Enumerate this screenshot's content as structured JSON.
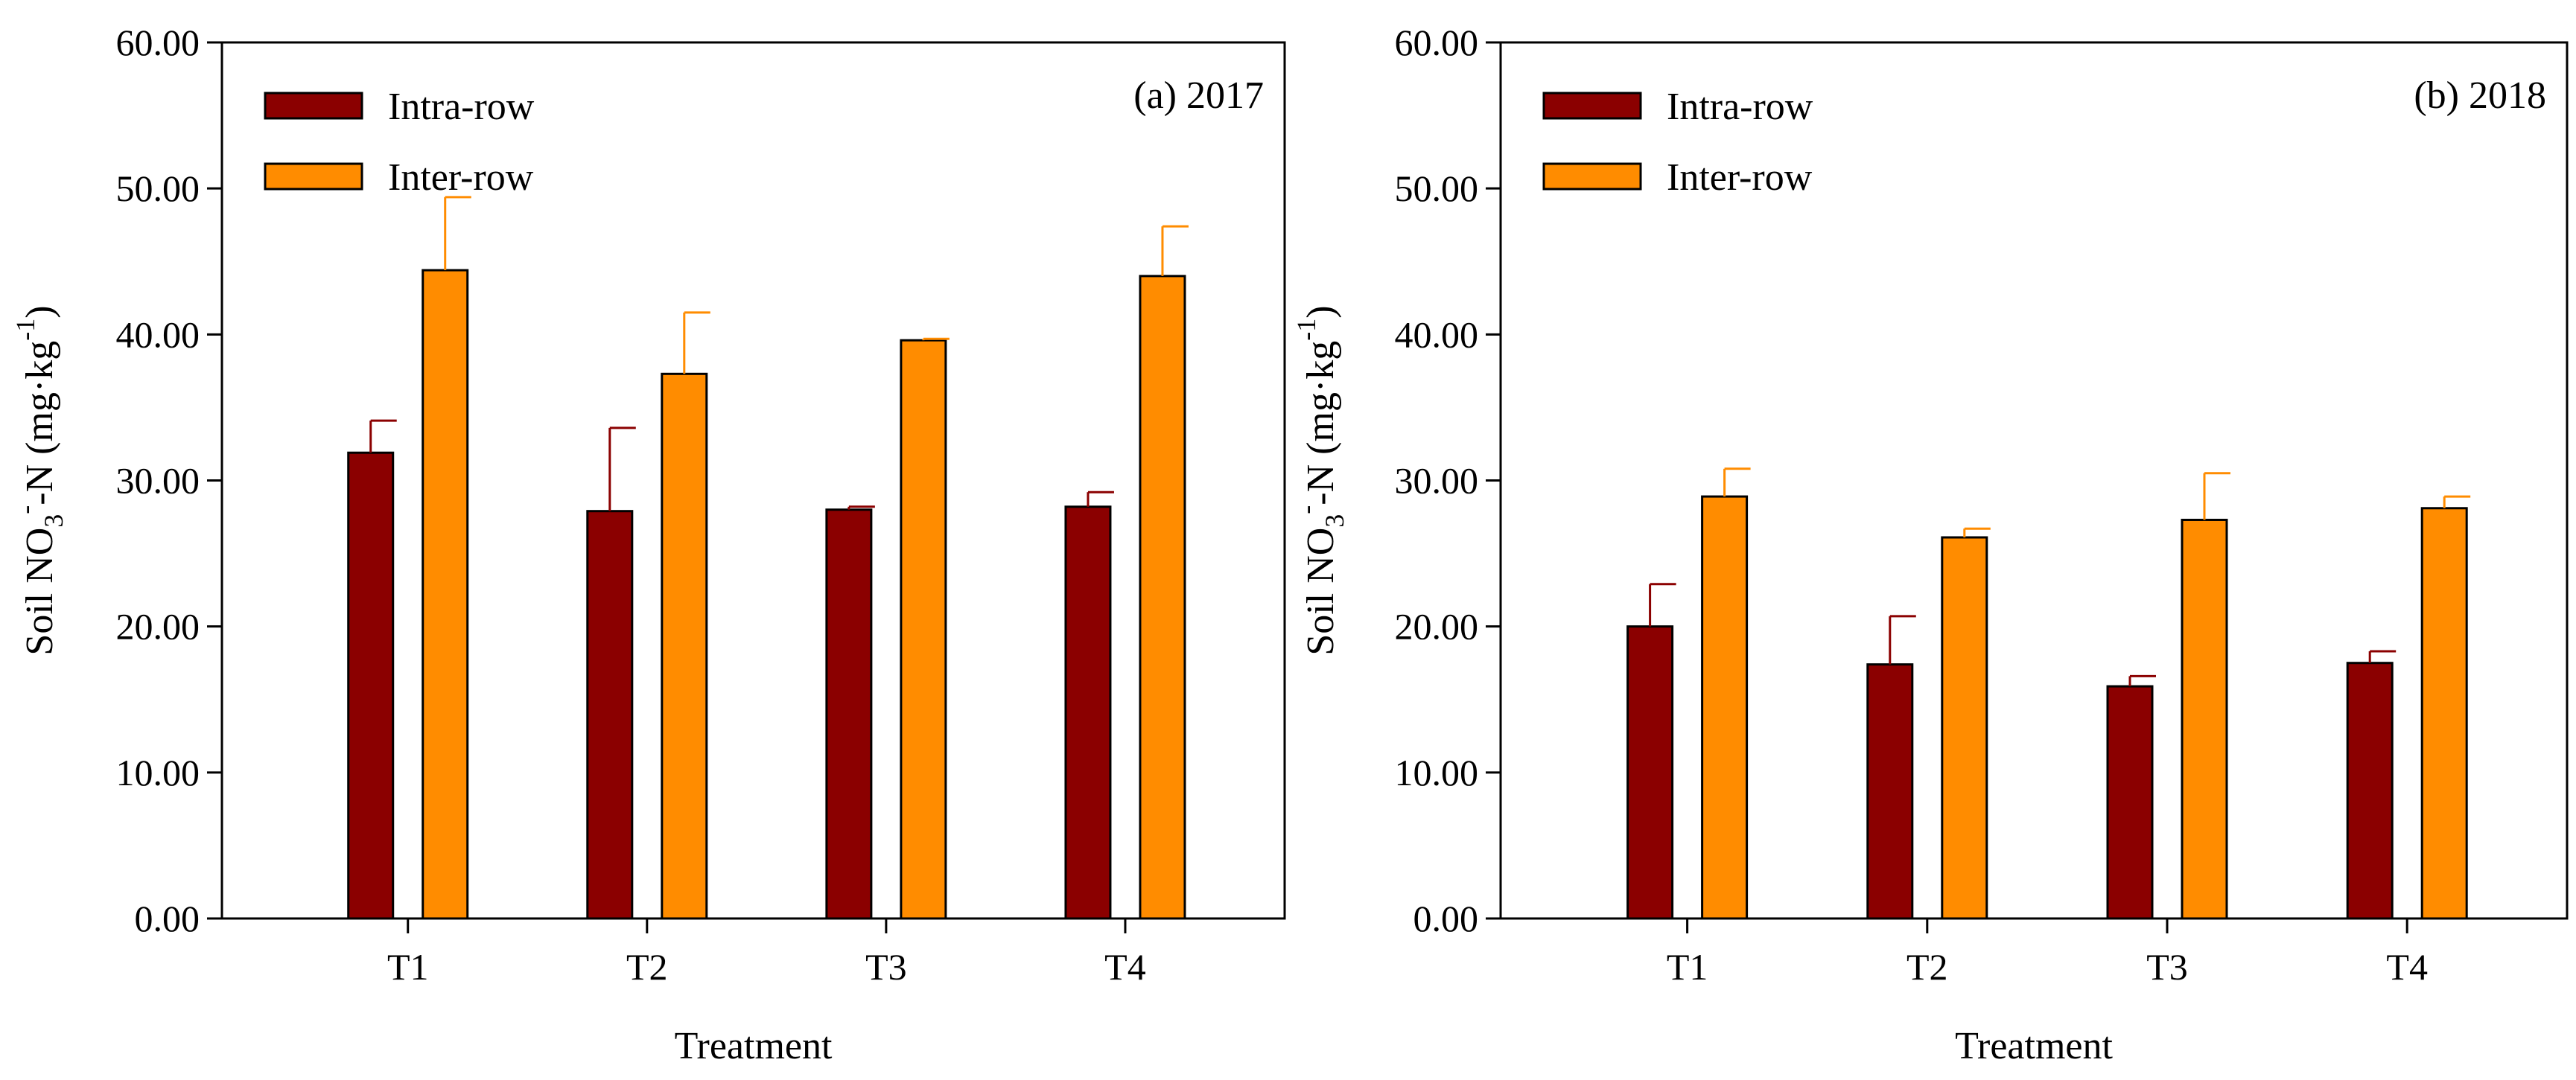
{
  "chart_data": [
    {
      "type": "bar",
      "panel_label": "(a) 2017",
      "categories": [
        "T1",
        "T2",
        "T3",
        "T4"
      ],
      "series": [
        {
          "name": "Intra-row",
          "color": "#8B0000",
          "values": [
            31.9,
            27.9,
            28.0,
            28.2
          ],
          "errors": [
            2.2,
            5.7,
            0.2,
            1.0
          ]
        },
        {
          "name": "Inter-row",
          "color": "#FF8C00",
          "values": [
            44.4,
            37.3,
            39.6,
            44.0
          ],
          "errors": [
            5.0,
            4.2,
            0.1,
            3.4
          ]
        }
      ],
      "xlabel": "Treatment",
      "ylabel": {
        "prefix": "Soil NO",
        "sub": "3",
        "sup": "-",
        "middle": "-N (mg·kg",
        "sup2": "-1",
        "suffix": ")"
      },
      "ylim": [
        0,
        60
      ],
      "yticks": [
        "0.00",
        "10.00",
        "20.00",
        "30.00",
        "40.00",
        "50.00",
        "60.00"
      ],
      "legend_position": "top-left",
      "grid": false
    },
    {
      "type": "bar",
      "panel_label": "(b) 2018",
      "categories": [
        "T1",
        "T2",
        "T3",
        "T4"
      ],
      "series": [
        {
          "name": "Intra-row",
          "color": "#8B0000",
          "values": [
            20.0,
            17.4,
            15.9,
            17.5
          ],
          "errors": [
            2.9,
            3.3,
            0.7,
            0.8
          ]
        },
        {
          "name": "Inter-row",
          "color": "#FF8C00",
          "values": [
            28.9,
            26.1,
            27.3,
            28.1
          ],
          "errors": [
            1.9,
            0.6,
            3.2,
            0.8
          ]
        }
      ],
      "xlabel": "Treatment",
      "ylabel": {
        "prefix": "Soil NO",
        "sub": "3",
        "sup": "-",
        "middle": "-N (mg·kg",
        "sup2": "-1",
        "suffix": ")"
      },
      "ylim": [
        0,
        60
      ],
      "yticks": [
        "0.00",
        "10.00",
        "20.00",
        "30.00",
        "40.00",
        "50.00",
        "60.00"
      ],
      "legend_position": "top-left",
      "grid": false
    }
  ]
}
